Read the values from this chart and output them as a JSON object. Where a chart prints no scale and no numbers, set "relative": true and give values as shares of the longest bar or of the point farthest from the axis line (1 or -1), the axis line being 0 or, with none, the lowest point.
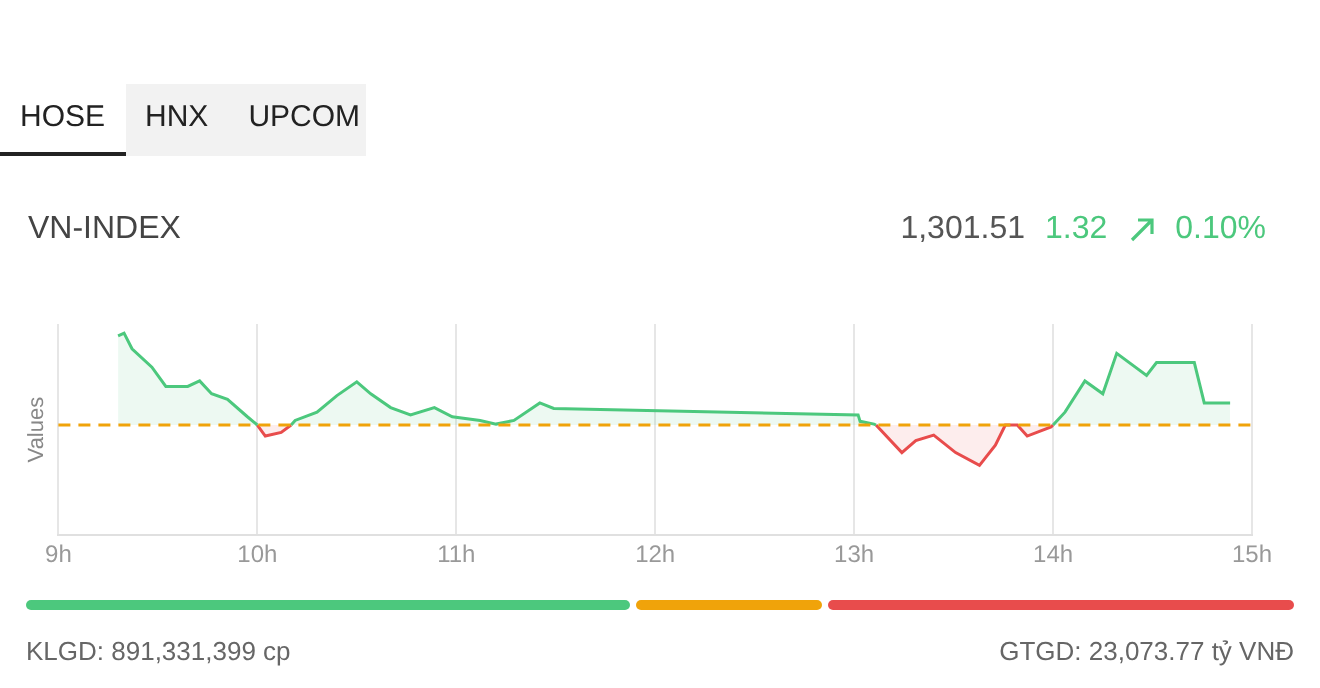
{
  "chart_data": {
    "type": "area",
    "title": "VN-INDEX",
    "subtitle": "1,301.51",
    "ylabel": "Values",
    "relative": true,
    "annotations": [
      "HOSE",
      "HNX",
      "UPCOM",
      "1.32",
      "0.10%",
      "KLGD: 891,331,399 cp",
      "GTGD: 23,073.77 tỷ VNĐ"
    ],
    "xlim": [
      9,
      15
    ],
    "xticks": [
      {
        "value": 9,
        "label": "9h"
      },
      {
        "value": 10,
        "label": "10h"
      },
      {
        "value": 11,
        "label": "11h"
      },
      {
        "value": 12,
        "label": "12h"
      },
      {
        "value": 13,
        "label": "13h"
      },
      {
        "value": 14,
        "label": "14h"
      },
      {
        "value": 15,
        "label": "15h"
      }
    ],
    "series": [
      {
        "color": "#4cc87d",
        "x": [
          9.3,
          9.33,
          9.37,
          9.47,
          9.54,
          9.65,
          9.71,
          9.77,
          9.85,
          9.95,
          10.0,
          10.08,
          10.17,
          10.19,
          10.3,
          10.4,
          10.5,
          10.57,
          10.67,
          10.77,
          10.89,
          10.98,
          11.12,
          11.2,
          11.29,
          11.42,
          11.49,
          13.02,
          13.03,
          13.1,
          13.11,
          13.4,
          14.0,
          14.06,
          14.16,
          14.25,
          14.32,
          14.47,
          14.52,
          14.71,
          14.76,
          14.89
        ],
        "values": [
          0.97,
          1.0,
          0.83,
          0.63,
          0.42,
          0.42,
          0.48,
          0.34,
          0.28,
          0.09,
          0,
          null,
          0,
          0.05,
          0.14,
          0.32,
          0.47,
          0.34,
          0.19,
          0.11,
          0.19,
          0.09,
          0.05,
          0.01,
          0.05,
          0.24,
          0.18,
          0.11,
          0.04,
          0.01,
          0,
          null,
          0,
          0.14,
          0.48,
          0.34,
          0.78,
          0.54,
          0.68,
          0.68,
          0.24,
          0.24
        ]
      },
      {
        "color": "#e84c4c",
        "x": [
          10.0,
          10.04,
          10.12,
          10.17,
          12.0,
          13.11,
          13.24,
          13.31,
          13.4,
          13.51,
          13.63,
          13.71,
          13.76,
          13.82,
          13.87,
          13.99,
          14.0
        ],
        "values": [
          0,
          -0.12,
          -0.08,
          0,
          null,
          0,
          -0.3,
          -0.17,
          -0.11,
          -0.3,
          -0.44,
          -0.22,
          0,
          0,
          -0.12,
          -0.02,
          0
        ]
      }
    ],
    "ref_lines": [
      {
        "axis": "y",
        "value": 0,
        "color": "#f0a30a",
        "line_style": "dashed"
      }
    ],
    "grid": "x",
    "legend": false,
    "marker": "none",
    "line_style": "solid"
  }
}
